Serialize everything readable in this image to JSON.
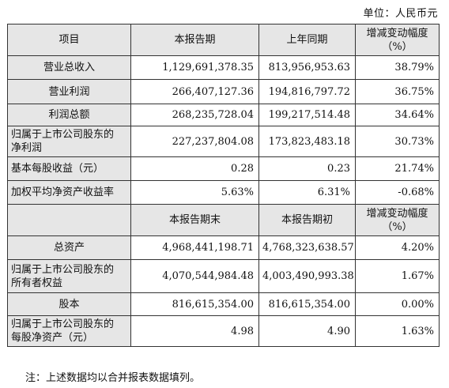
{
  "unit": "单位：人民币元",
  "header1": {
    "item": "项目",
    "current": "本报告期",
    "prior": "上年同期",
    "change_l1": "增减变动幅度",
    "change_l2": "（%）"
  },
  "rows1": [
    {
      "label": "营业总收入",
      "current": "1,129,691,378.35",
      "prior": "813,956,953.63",
      "change": "38.79%"
    },
    {
      "label": "营业利润",
      "current": "266,407,127.36",
      "prior": "194,816,797.72",
      "change": "36.75%"
    },
    {
      "label": "利润总额",
      "current": "268,235,728.04",
      "prior": "199,217,514.48",
      "change": "34.64%"
    },
    {
      "label_l1": "归属于上市公司股东的",
      "label_l2": "净利润",
      "current": "227,237,804.08",
      "prior": "173,823,483.18",
      "change": "30.73%"
    },
    {
      "label": "基本每股收益（元）",
      "current": "0.28",
      "prior": "0.23",
      "change": "21.74%"
    },
    {
      "label": "加权平均净资产收益率",
      "current": "5.63%",
      "prior": "6.31%",
      "change": "-0.68%"
    }
  ],
  "header2": {
    "current": "本报告期末",
    "prior": "本报告期初",
    "change_l1": "增减变动幅度",
    "change_l2": "（%）"
  },
  "rows2": [
    {
      "label": "总资产",
      "current": "4,968,441,198.71",
      "prior": "4,768,323,638.57",
      "change": "4.20%"
    },
    {
      "label_l1": "归属于上市公司股东的",
      "label_l2": "所有者权益",
      "current": "4,070,544,984.48",
      "prior": "4,003,490,993.38",
      "change": "1.67%"
    },
    {
      "label": "股本",
      "current": "816,615,354.00",
      "prior": "816,615,354.00",
      "change": "0.00%"
    },
    {
      "label_l1": "归属于上市公司股东的",
      "label_l2": "每股净资产（元）",
      "current": "4.98",
      "prior": "4.90",
      "change": "1.63%"
    }
  ],
  "note": "注：上述数据均以合并报表数据填列。"
}
